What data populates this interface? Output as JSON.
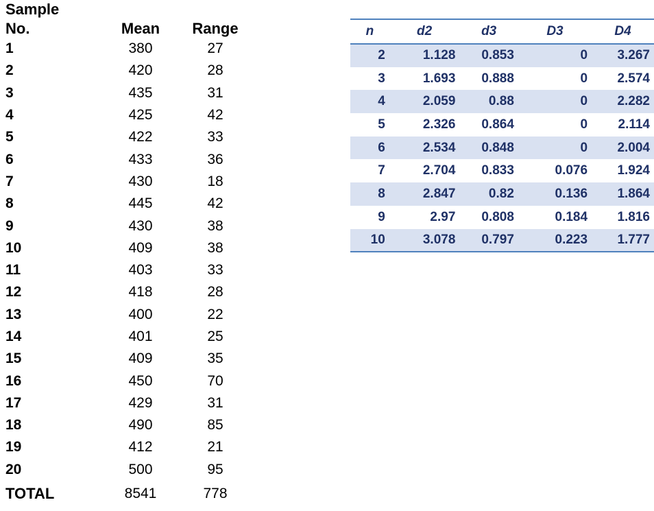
{
  "page": {
    "background": "#ffffff"
  },
  "colors": {
    "navy_text": "#1f3166",
    "row_band": "#d9e1f1",
    "accent_line": "#4f81bd"
  },
  "samples_table": {
    "title": "Sample",
    "columns": [
      "No.",
      "Mean",
      "Range"
    ],
    "rows": [
      {
        "no": "1",
        "mean": "380",
        "range": "27"
      },
      {
        "no": "2",
        "mean": "420",
        "range": "28"
      },
      {
        "no": "3",
        "mean": "435",
        "range": "31"
      },
      {
        "no": "4",
        "mean": "425",
        "range": "42"
      },
      {
        "no": "5",
        "mean": "422",
        "range": "33"
      },
      {
        "no": "6",
        "mean": "433",
        "range": "36"
      },
      {
        "no": "7",
        "mean": "430",
        "range": "18"
      },
      {
        "no": "8",
        "mean": "445",
        "range": "42"
      },
      {
        "no": "9",
        "mean": "430",
        "range": "38"
      },
      {
        "no": "10",
        "mean": "409",
        "range": "38"
      },
      {
        "no": "11",
        "mean": "403",
        "range": "33"
      },
      {
        "no": "12",
        "mean": "418",
        "range": "28"
      },
      {
        "no": "13",
        "mean": "400",
        "range": "22"
      },
      {
        "no": "14",
        "mean": "401",
        "range": "25"
      },
      {
        "no": "15",
        "mean": "409",
        "range": "35"
      },
      {
        "no": "16",
        "mean": "450",
        "range": "70"
      },
      {
        "no": "17",
        "mean": "429",
        "range": "31"
      },
      {
        "no": "18",
        "mean": "490",
        "range": "85"
      },
      {
        "no": "19",
        "mean": "412",
        "range": "21"
      },
      {
        "no": "20",
        "mean": "500",
        "range": "95"
      }
    ],
    "total": {
      "label": "TOTAL",
      "mean": "8541",
      "range": "778"
    }
  },
  "constants_table": {
    "columns": [
      "n",
      "d2",
      "d3",
      "D3",
      "D4"
    ],
    "rows": [
      [
        "2",
        "1.128",
        "0.853",
        "0",
        "3.267"
      ],
      [
        "3",
        "1.693",
        "0.888",
        "0",
        "2.574"
      ],
      [
        "4",
        "2.059",
        "0.88",
        "0",
        "2.282"
      ],
      [
        "5",
        "2.326",
        "0.864",
        "0",
        "2.114"
      ],
      [
        "6",
        "2.534",
        "0.848",
        "0",
        "2.004"
      ],
      [
        "7",
        "2.704",
        "0.833",
        "0.076",
        "1.924"
      ],
      [
        "8",
        "2.847",
        "0.82",
        "0.136",
        "1.864"
      ],
      [
        "9",
        "2.97",
        "0.808",
        "0.184",
        "1.816"
      ],
      [
        "10",
        "3.078",
        "0.797",
        "0.223",
        "1.777"
      ]
    ]
  }
}
